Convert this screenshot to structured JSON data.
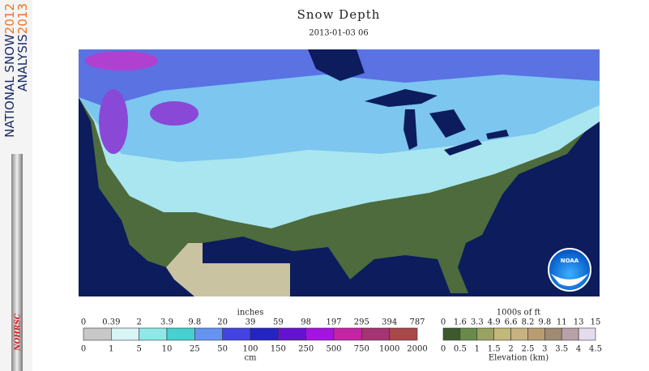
{
  "header": {
    "title": "Snow Depth",
    "date": "2013-01-03 06"
  },
  "sidebar": {
    "line1": "NATIONAL SNOW",
    "year1": "2012",
    "line2": "ANALYSIS",
    "year2": "2013",
    "logo": "NOHRSC"
  },
  "map": {
    "logo": "NOAA"
  },
  "snow_legend": {
    "top_label": "inches",
    "bottom_label": "cm",
    "top_ticks": [
      0,
      0.39,
      2,
      3.9,
      9.8,
      20,
      39,
      59,
      98,
      197,
      295,
      394,
      787
    ],
    "bottom_ticks": [
      0,
      1,
      5,
      10,
      25,
      50,
      100,
      150,
      250,
      500,
      750,
      1000,
      2000
    ]
  },
  "elevation_legend": {
    "top_label": "1000s of ft",
    "bottom_label": "Elevation (km)",
    "top_ticks": [
      0,
      1.6,
      3.3,
      4.9,
      6.6,
      8.2,
      9.8,
      11,
      13,
      15
    ],
    "bottom_ticks": [
      0,
      0.5,
      1,
      1.5,
      2,
      2.5,
      3,
      3.5,
      4,
      4.5
    ]
  }
}
